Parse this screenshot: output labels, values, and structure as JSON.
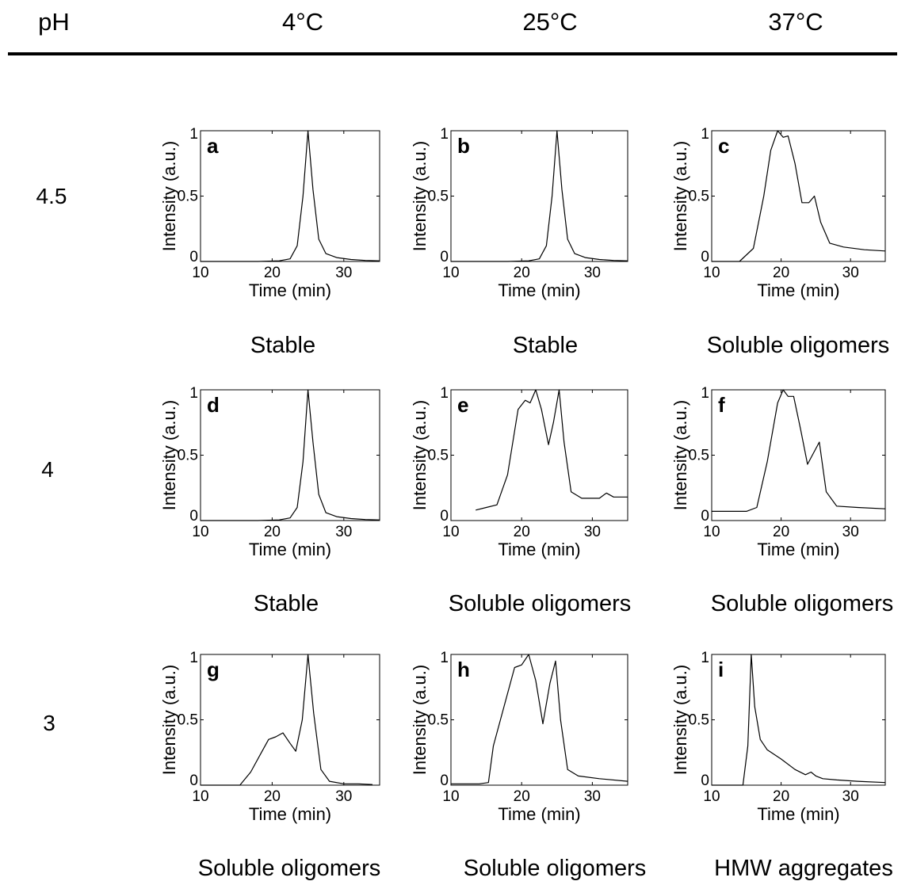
{
  "header": {
    "ph_label": "pH",
    "temperatures": [
      "4°C",
      "25°C",
      "37°C"
    ]
  },
  "rows": [
    "4.5",
    "4",
    "3"
  ],
  "verdicts": [
    [
      "Stable",
      "Stable",
      "Soluble oligomers"
    ],
    [
      "Stable",
      "Soluble oligomers",
      "Soluble oligomers"
    ],
    [
      "Soluble oligomers",
      "Soluble oligomers",
      "HMW aggregates"
    ]
  ],
  "colors": {
    "line": "#000000",
    "axis": "#000000",
    "background": "#ffffff"
  },
  "chart_data": [
    {
      "type": "line",
      "panel_label": "a",
      "xlabel": "Time (min)",
      "ylabel": "Intensity (a.u.)",
      "xlim": [
        10,
        35
      ],
      "ylim": [
        0,
        1
      ],
      "xticks": [
        10,
        20,
        30
      ],
      "yticks": [
        0,
        0.5,
        1
      ],
      "yticklabels": [
        "0",
        "0.5",
        "1"
      ],
      "series": [
        {
          "x": [
            10,
            18,
            21,
            22.5,
            23.5,
            24.3,
            25,
            25.7,
            26.5,
            27.5,
            29,
            31,
            33,
            35
          ],
          "y": [
            0,
            0,
            0.005,
            0.02,
            0.12,
            0.5,
            1,
            0.55,
            0.17,
            0.06,
            0.03,
            0.015,
            0.008,
            0.005
          ]
        }
      ]
    },
    {
      "type": "line",
      "panel_label": "b",
      "xlabel": "Time (min)",
      "ylabel": "Intensity (a.u.)",
      "xlim": [
        10,
        35
      ],
      "ylim": [
        0,
        1
      ],
      "xticks": [
        10,
        20,
        30
      ],
      "yticks": [
        0,
        0.5,
        1
      ],
      "yticklabels": [
        "0",
        "0.5",
        "1"
      ],
      "series": [
        {
          "x": [
            10,
            18,
            21,
            22.5,
            23.5,
            24.3,
            25,
            25.7,
            26.5,
            27.5,
            29,
            31,
            33,
            35
          ],
          "y": [
            0,
            0,
            0.005,
            0.02,
            0.12,
            0.5,
            1,
            0.55,
            0.17,
            0.06,
            0.03,
            0.015,
            0.008,
            0.005
          ]
        }
      ]
    },
    {
      "type": "line",
      "panel_label": "c",
      "xlabel": "Time (min)",
      "ylabel": "Intensity (a.u.)",
      "xlim": [
        10,
        35
      ],
      "ylim": [
        0,
        1
      ],
      "xticks": [
        10,
        20,
        30
      ],
      "yticks": [
        0,
        0.5,
        1
      ],
      "yticklabels": [
        "0",
        "0.5",
        "1"
      ],
      "series": [
        {
          "x": [
            10,
            14,
            16,
            17.5,
            18.5,
            19.5,
            20.3,
            21,
            22,
            23,
            24,
            24.8,
            25.7,
            27,
            29,
            32,
            35
          ],
          "y": [
            0,
            0,
            0.1,
            0.5,
            0.85,
            1,
            0.95,
            0.96,
            0.75,
            0.45,
            0.45,
            0.5,
            0.3,
            0.14,
            0.11,
            0.09,
            0.08
          ]
        }
      ]
    },
    {
      "type": "line",
      "panel_label": "d",
      "xlabel": "Time (min)",
      "ylabel": "Intensity (a.u.)",
      "xlim": [
        10,
        35
      ],
      "ylim": [
        0,
        1
      ],
      "xticks": [
        10,
        20,
        30
      ],
      "yticks": [
        0,
        0.5,
        1
      ],
      "yticklabels": [
        "0",
        "0.5",
        "1"
      ],
      "series": [
        {
          "x": [
            10,
            18,
            21,
            22.5,
            23.5,
            24.3,
            25,
            25.7,
            26.5,
            27.5,
            29,
            31,
            33,
            35
          ],
          "y": [
            0,
            0,
            0.005,
            0.02,
            0.1,
            0.45,
            1,
            0.6,
            0.2,
            0.06,
            0.03,
            0.015,
            0.008,
            0.005
          ]
        }
      ]
    },
    {
      "type": "line",
      "panel_label": "e",
      "xlabel": "Time (min)",
      "ylabel": "Intensity (a.u.)",
      "xlim": [
        10,
        35
      ],
      "ylim": [
        0,
        1
      ],
      "xticks": [
        10,
        20,
        30
      ],
      "yticks": [
        0,
        0.5,
        1
      ],
      "yticklabels": [
        "0",
        "0.5",
        "1"
      ],
      "series": [
        {
          "x": [
            13.5,
            15,
            16.5,
            18,
            19.5,
            20.5,
            21.2,
            22,
            22.8,
            23.8,
            24.5,
            25.3,
            26,
            27,
            28.5,
            31,
            32,
            33,
            35
          ],
          "y": [
            0.08,
            0.1,
            0.12,
            0.35,
            0.85,
            0.92,
            0.9,
            1,
            0.85,
            0.58,
            0.75,
            1,
            0.6,
            0.22,
            0.17,
            0.17,
            0.21,
            0.18,
            0.18
          ]
        }
      ]
    },
    {
      "type": "line",
      "panel_label": "f",
      "xlabel": "Time (min)",
      "ylabel": "Intensity (a.u.)",
      "xlim": [
        10,
        35
      ],
      "ylim": [
        0,
        1
      ],
      "xticks": [
        10,
        20,
        30
      ],
      "yticks": [
        0,
        0.5,
        1
      ],
      "yticklabels": [
        "0",
        "0.5",
        "1"
      ],
      "series": [
        {
          "x": [
            10,
            15,
            16.5,
            18,
            19.5,
            20.3,
            21,
            21.8,
            22.8,
            23.8,
            24.5,
            25.5,
            26.5,
            28,
            31,
            35
          ],
          "y": [
            0.07,
            0.07,
            0.1,
            0.45,
            0.9,
            1,
            0.95,
            0.95,
            0.7,
            0.43,
            0.5,
            0.6,
            0.22,
            0.11,
            0.1,
            0.09
          ]
        }
      ]
    },
    {
      "type": "line",
      "panel_label": "g",
      "xlabel": "Time (min)",
      "ylabel": "Intensity (a.u.)",
      "xlim": [
        10,
        35
      ],
      "ylim": [
        0,
        1
      ],
      "xticks": [
        10,
        20,
        30
      ],
      "yticks": [
        0,
        0.5,
        1
      ],
      "yticklabels": [
        "0",
        "0.5",
        "1"
      ],
      "series": [
        {
          "x": [
            10,
            15.5,
            17,
            18.5,
            19.5,
            20.5,
            21.5,
            22.5,
            23.3,
            24.2,
            25,
            25.8,
            26.8,
            28,
            30,
            32,
            34
          ],
          "y": [
            0,
            0,
            0.1,
            0.25,
            0.35,
            0.37,
            0.4,
            0.32,
            0.26,
            0.5,
            1,
            0.55,
            0.12,
            0.03,
            0.01,
            0.01,
            0.005
          ]
        }
      ]
    },
    {
      "type": "line",
      "panel_label": "h",
      "xlabel": "Time (min)",
      "ylabel": "Intensity (a.u.)",
      "xlim": [
        10,
        35
      ],
      "ylim": [
        0,
        1
      ],
      "xticks": [
        10,
        20,
        30
      ],
      "yticks": [
        0,
        0.5,
        1
      ],
      "yticklabels": [
        "0",
        "0.5",
        "1"
      ],
      "series": [
        {
          "x": [
            10,
            14,
            15.3,
            16,
            17.5,
            19,
            20,
            21,
            22,
            23,
            24,
            24.8,
            25.5,
            26.5,
            28,
            31,
            35
          ],
          "y": [
            0.01,
            0.01,
            0.02,
            0.3,
            0.6,
            0.9,
            0.92,
            1,
            0.8,
            0.47,
            0.78,
            0.95,
            0.5,
            0.12,
            0.07,
            0.05,
            0.03
          ]
        }
      ]
    },
    {
      "type": "line",
      "panel_label": "i",
      "xlabel": "Time (min)",
      "ylabel": "Intensity (a.u.)",
      "xlim": [
        10,
        35
      ],
      "ylim": [
        0,
        1
      ],
      "xticks": [
        10,
        20,
        30
      ],
      "yticks": [
        0,
        0.5,
        1
      ],
      "yticklabels": [
        "0",
        "0.5",
        "1"
      ],
      "series": [
        {
          "x": [
            10,
            14.5,
            15.2,
            15.7,
            16.2,
            17,
            18,
            20,
            22,
            23.5,
            24.3,
            25,
            26,
            28,
            31,
            35
          ],
          "y": [
            0,
            0,
            0.3,
            1,
            0.6,
            0.35,
            0.27,
            0.2,
            0.12,
            0.08,
            0.1,
            0.07,
            0.05,
            0.04,
            0.03,
            0.02
          ]
        }
      ]
    }
  ]
}
